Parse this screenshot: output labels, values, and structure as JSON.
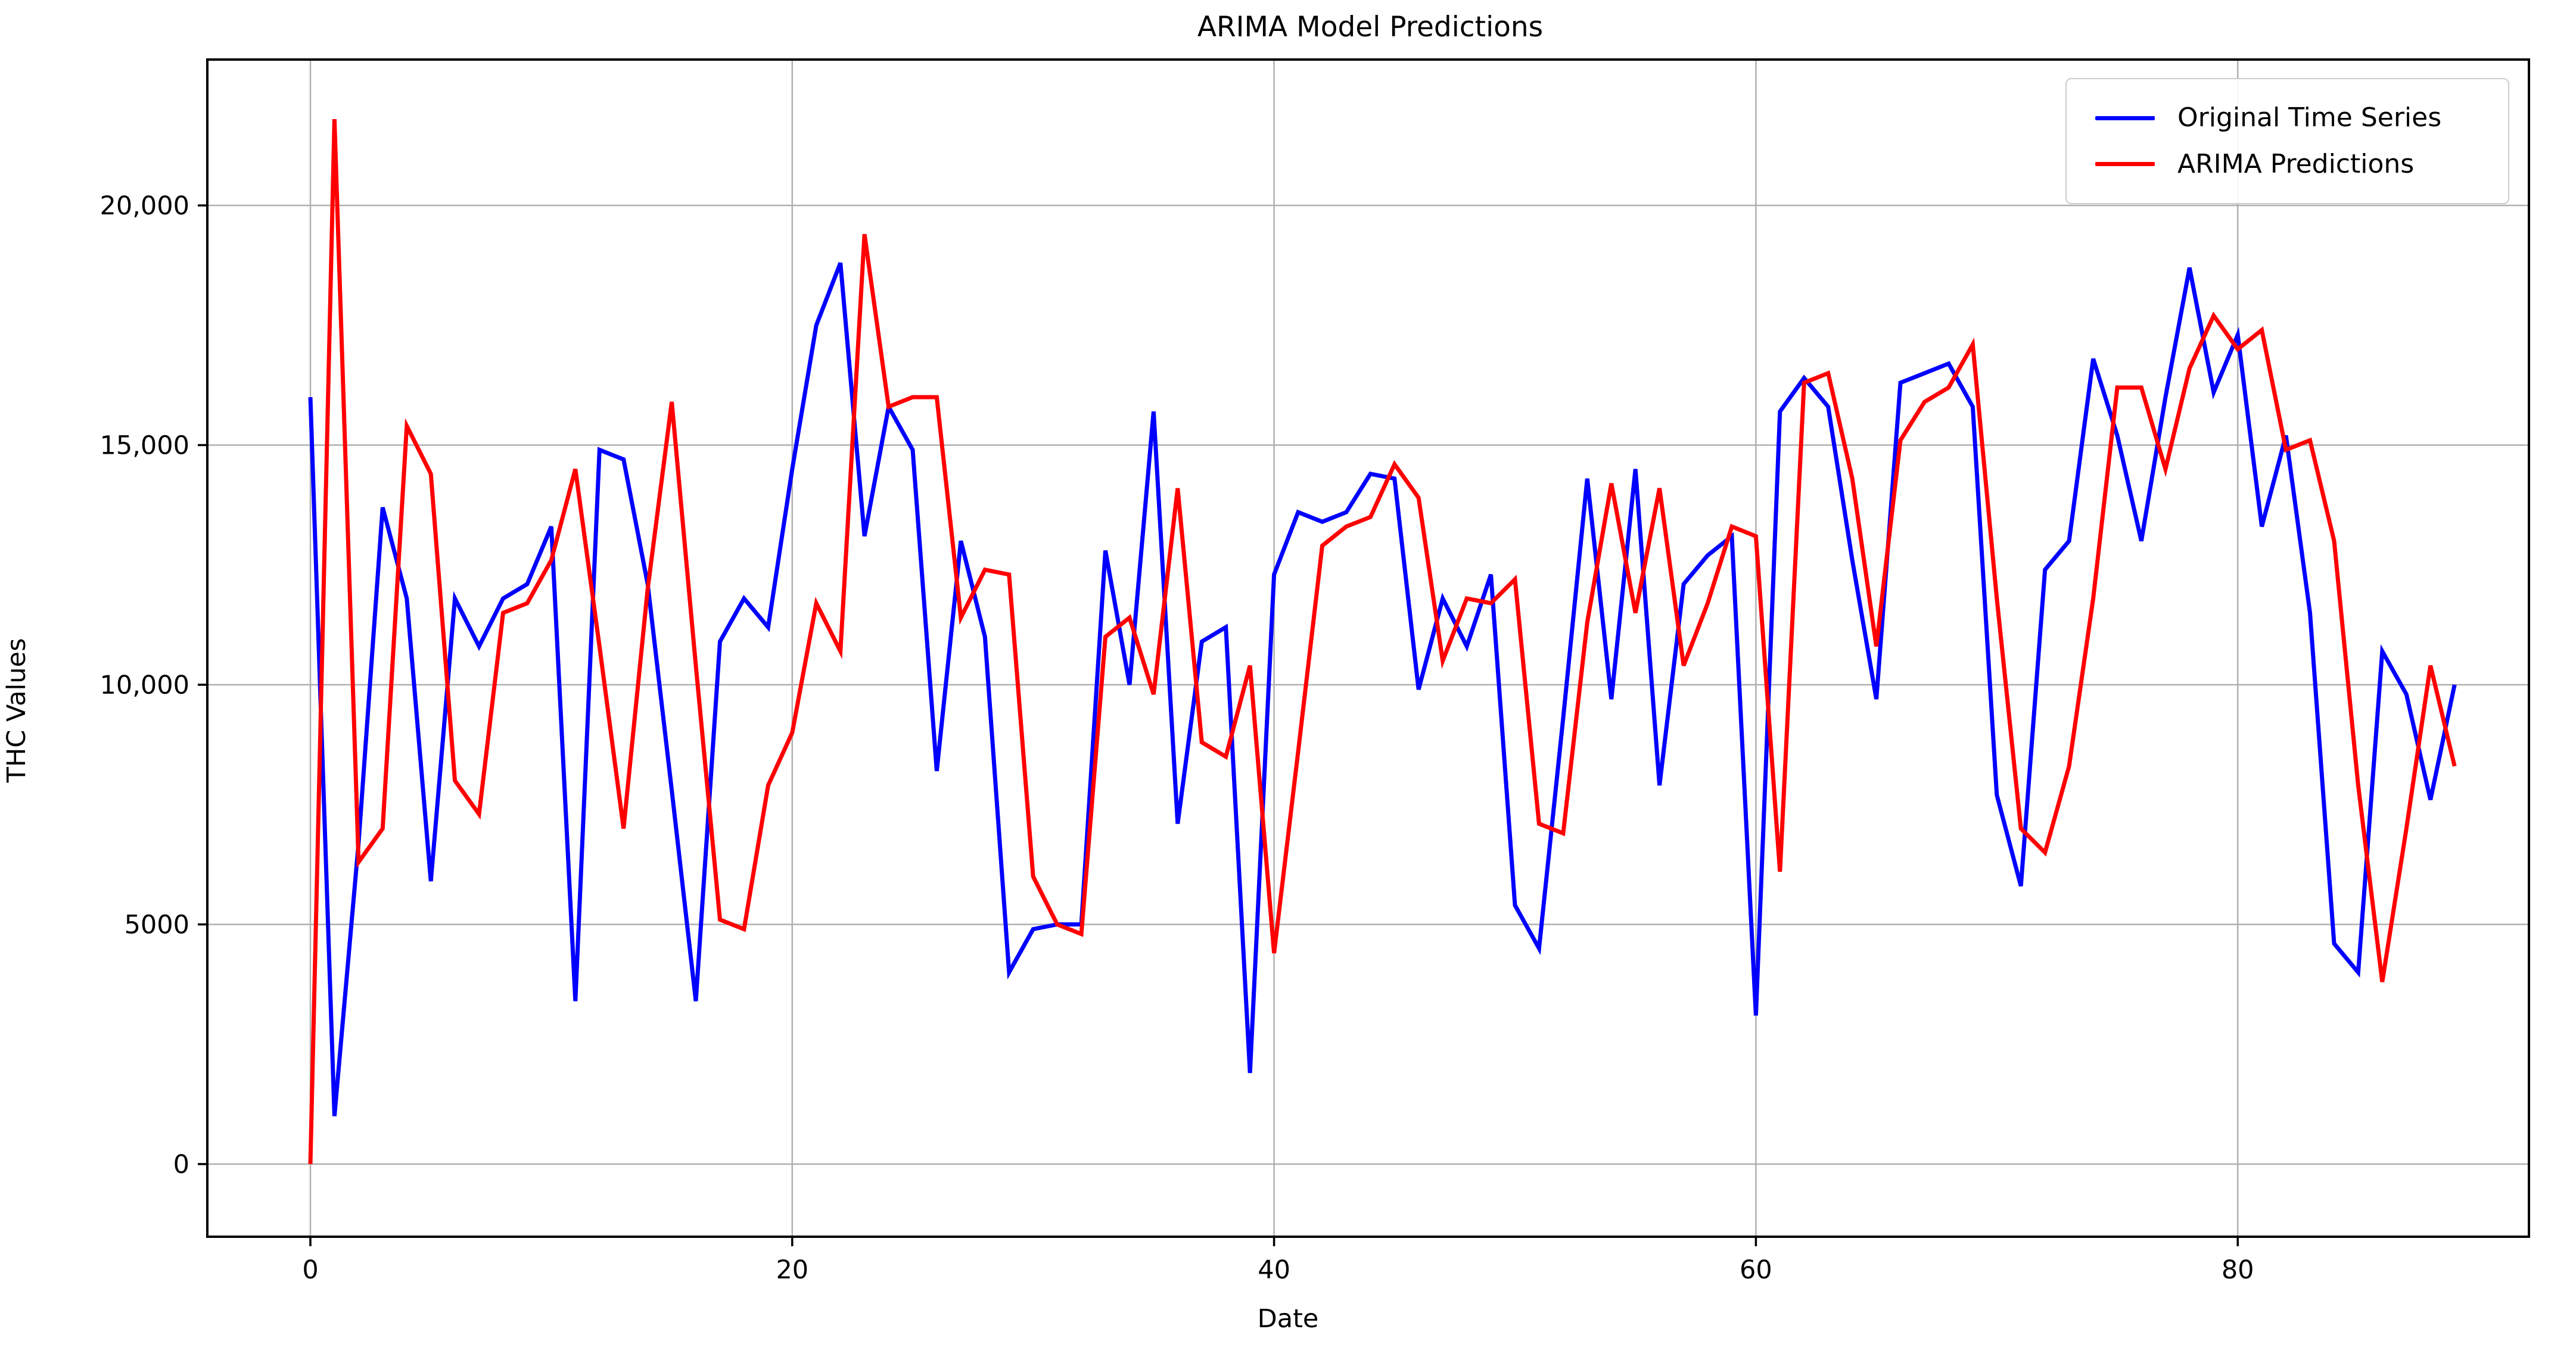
{
  "title": "ARIMA Model Predictions",
  "axis": {
    "xlabel": "Date",
    "ylabel": "THC Values",
    "x_ticks": [
      {
        "v": 0,
        "label": "0"
      },
      {
        "v": 20,
        "label": "20"
      },
      {
        "v": 40,
        "label": "40"
      },
      {
        "v": 60,
        "label": "60"
      },
      {
        "v": 80,
        "label": "80"
      }
    ],
    "y_ticks": [
      {
        "v": 0,
        "label": "0"
      },
      {
        "v": 5000,
        "label": "5000"
      },
      {
        "v": 10000,
        "label": "10,000"
      },
      {
        "v": 15000,
        "label": "15,000"
      },
      {
        "v": 20000,
        "label": "20,000"
      }
    ]
  },
  "legend": {
    "items": [
      {
        "label": "Original Time Series",
        "color": "#0000ff"
      },
      {
        "label": "ARIMA Predictions",
        "color": "#ff0000"
      }
    ]
  },
  "colors": {
    "grid": "#b0b0b0",
    "spine": "#000000",
    "background": "#ffffff",
    "original_series": "#0000ff",
    "arima_series": "#ff0000"
  },
  "chart_data": {
    "type": "line",
    "title": "ARIMA Model Predictions",
    "xlabel": "Date",
    "ylabel": "THC Values",
    "grid": true,
    "legend_position": "upper right",
    "xlim": [
      -4.3,
      92.1
    ],
    "ylim": [
      -1520,
      23040
    ],
    "x_rule": "x = index (0..89) for both series",
    "series": [
      {
        "name": "Original Time Series",
        "color": "#0000ff",
        "values": [
          16000,
          1000,
          6700,
          13700,
          11800,
          5900,
          11800,
          10800,
          11800,
          12100,
          13300,
          3400,
          14900,
          14700,
          12100,
          7800,
          3400,
          10900,
          11800,
          11200,
          14500,
          17500,
          18800,
          13100,
          15800,
          14900,
          8200,
          13000,
          11000,
          4000,
          4900,
          5000,
          5000,
          12800,
          10000,
          15700,
          7100,
          10900,
          11200,
          1900,
          12300,
          13600,
          13400,
          13600,
          14400,
          14300,
          9900,
          11800,
          10800,
          12300,
          5400,
          4500,
          9300,
          14300,
          9700,
          14500,
          7900,
          12100,
          12700,
          13100,
          3100,
          15700,
          16400,
          15800,
          12600,
          9700,
          16300,
          16500,
          16700,
          15800,
          7700,
          5800,
          12400,
          13000,
          16800,
          15200,
          13000,
          16000,
          18700,
          16100,
          17300,
          13300,
          15200,
          11500,
          4600,
          4000,
          10700,
          9800,
          7600,
          10000
        ]
      },
      {
        "name": "ARIMA Predictions",
        "color": "#ff0000",
        "values": [
          0,
          21800,
          6300,
          7000,
          15400,
          14400,
          8000,
          7300,
          11500,
          11700,
          12600,
          14500,
          10800,
          7000,
          12000,
          15900,
          10400,
          5100,
          4900,
          7900,
          9000,
          11700,
          10700,
          19400,
          15800,
          16000,
          16000,
          11400,
          12400,
          12300,
          6000,
          5000,
          4800,
          11000,
          11400,
          9800,
          14100,
          8800,
          8500,
          10400,
          4400,
          8600,
          12900,
          13300,
          13500,
          14600,
          13900,
          10500,
          11800,
          11700,
          12200,
          7100,
          6900,
          11300,
          14200,
          11500,
          14100,
          10400,
          11700,
          13300,
          13100,
          6100,
          16300,
          16500,
          14300,
          10800,
          15100,
          15900,
          16200,
          17100,
          11800,
          7000,
          6500,
          8300,
          11800,
          16200,
          16200,
          14500,
          16600,
          17700,
          17000,
          17400,
          14900,
          15100,
          13000,
          7900,
          3800,
          7000,
          10400,
          8300
        ]
      }
    ]
  }
}
